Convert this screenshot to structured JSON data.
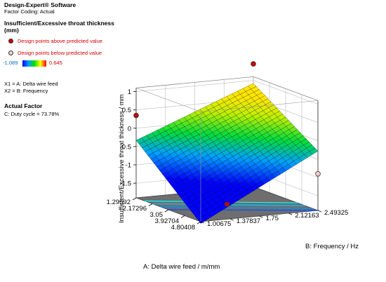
{
  "app": {
    "title": "Design-Expert® Software",
    "coding": "Factor Coding: Actual"
  },
  "response": {
    "name_line1": "Insufficient/Excessive throat thickness",
    "name_line2": "(mm)"
  },
  "design_points": {
    "above": "Design points above predicted value",
    "below": "Design points below predicted value",
    "above_color": "#cc0000",
    "below_color": "#f2d0d0"
  },
  "color_scale": {
    "min": "-1.089",
    "max": "0.645"
  },
  "factors": {
    "x1": "X1 = A: Delta wire feed",
    "x2": "X2 = B: Frequency"
  },
  "actual_factor": {
    "heading": "Actual Factor",
    "value": "C: Duty cycle = 73.78%"
  },
  "chart_data": {
    "type": "surface",
    "x": {
      "label": "A: Delta wire feed / m/mm",
      "ticks": [
        "1.29592",
        "2.17296",
        "3.05",
        "3.92704",
        "4.80408"
      ],
      "range": [
        1.29592,
        4.80408
      ]
    },
    "y": {
      "label": "B: Frequency / Hz",
      "ticks": [
        "1.00675",
        "1.37837",
        "1.75",
        "2.12163",
        "2.49325"
      ],
      "range": [
        1.00675,
        2.49325
      ]
    },
    "z": {
      "label": "Insufficient/Excessive throat thickness / mm",
      "ticks": [
        "-1.5",
        "-1",
        "-0.5",
        "0",
        "0.5",
        "1"
      ],
      "range": [
        -1.9,
        1.1
      ]
    },
    "surface_corners": {
      "a_min_b_min": -0.33,
      "a_max_b_min": -1.95,
      "a_min_b_max": 0.92,
      "a_max_b_max": -0.28
    },
    "color_min": -1.089,
    "color_max": 0.645,
    "design_points": [
      {
        "a": 1.29592,
        "b": 1.00675,
        "z": 0.35,
        "type": "above"
      },
      {
        "a": 1.29592,
        "b": 2.49325,
        "z": 1.45,
        "type": "above"
      },
      {
        "a": 4.80408,
        "b": 2.49325,
        "z": -0.9,
        "type": "below"
      },
      {
        "a": 3.05,
        "b": 1.75,
        "z": -1.9,
        "type": "above"
      }
    ],
    "contour_colors": [
      "#00ffff",
      "#00c8ff",
      "#0090ff",
      "#0050ff"
    ]
  }
}
